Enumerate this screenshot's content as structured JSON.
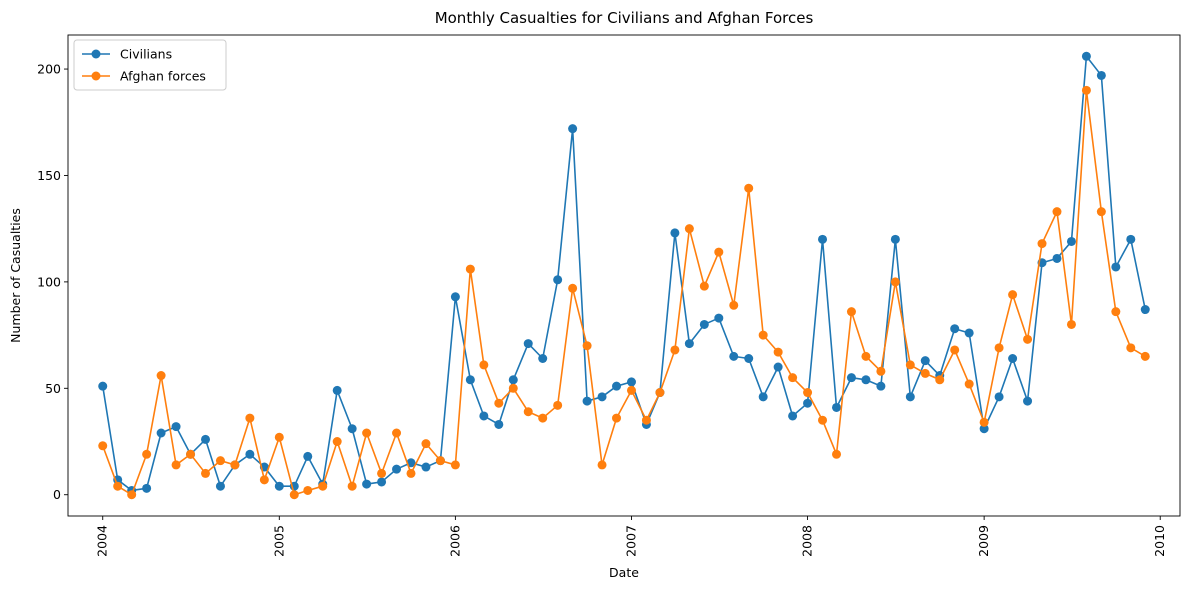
{
  "chart_data": {
    "type": "line",
    "title": "Monthly Casualties for Civilians and Afghan Forces",
    "xlabel": "Date",
    "ylabel": "Number of Casualties",
    "x_tick_labels": [
      "2004",
      "2005",
      "2006",
      "2007",
      "2008",
      "2009",
      "2010"
    ],
    "y_ticks": [
      0,
      50,
      100,
      150,
      200
    ],
    "ylim": [
      -10,
      216
    ],
    "xlim": [
      "2003-10-21",
      "2010-02-11"
    ],
    "grid": false,
    "legend_position": "top-left",
    "x": [
      "2004-01",
      "2004-02",
      "2004-03",
      "2004-04",
      "2004-05",
      "2004-06",
      "2004-07",
      "2004-08",
      "2004-09",
      "2004-10",
      "2004-11",
      "2004-12",
      "2005-01",
      "2005-02",
      "2005-03",
      "2005-04",
      "2005-05",
      "2005-06",
      "2005-07",
      "2005-08",
      "2005-09",
      "2005-10",
      "2005-11",
      "2005-12",
      "2006-01",
      "2006-02",
      "2006-03",
      "2006-04",
      "2006-05",
      "2006-06",
      "2006-07",
      "2006-08",
      "2006-09",
      "2006-10",
      "2006-11",
      "2006-12",
      "2007-01",
      "2007-02",
      "2007-03",
      "2007-04",
      "2007-05",
      "2007-06",
      "2007-07",
      "2007-08",
      "2007-09",
      "2007-10",
      "2007-11",
      "2007-12",
      "2008-01",
      "2008-02",
      "2008-03",
      "2008-04",
      "2008-05",
      "2008-06",
      "2008-07",
      "2008-08",
      "2008-09",
      "2008-10",
      "2008-11",
      "2008-12",
      "2009-01",
      "2009-02",
      "2009-03",
      "2009-04",
      "2009-05",
      "2009-06",
      "2009-07",
      "2009-08",
      "2009-09",
      "2009-10",
      "2009-11",
      "2009-12"
    ],
    "series": [
      {
        "name": "Civilians",
        "color": "#1f77b4",
        "values": [
          51,
          7,
          2,
          3,
          29,
          32,
          19,
          26,
          4,
          14,
          19,
          13,
          4,
          4,
          18,
          5,
          49,
          31,
          5,
          6,
          12,
          15,
          13,
          16,
          93,
          54,
          37,
          33,
          54,
          71,
          64,
          101,
          172,
          44,
          46,
          51,
          53,
          33,
          48,
          123,
          71,
          80,
          83,
          65,
          64,
          46,
          60,
          37,
          43,
          120,
          41,
          55,
          54,
          51,
          120,
          46,
          63,
          56,
          78,
          76,
          31,
          46,
          64,
          44,
          109,
          111,
          119,
          206,
          197,
          107,
          120,
          87
        ]
      },
      {
        "name": "Afghan forces",
        "color": "#ff7f0e",
        "values": [
          23,
          4,
          0,
          19,
          56,
          14,
          19,
          10,
          16,
          14,
          36,
          7,
          27,
          0,
          2,
          4,
          25,
          4,
          29,
          10,
          29,
          10,
          24,
          16,
          14,
          106,
          61,
          43,
          50,
          39,
          36,
          42,
          97,
          70,
          14,
          36,
          49,
          35,
          48,
          68,
          125,
          98,
          114,
          89,
          144,
          75,
          67,
          55,
          48,
          35,
          19,
          86,
          65,
          58,
          100,
          61,
          57,
          54,
          68,
          52,
          34,
          69,
          94,
          73,
          118,
          133,
          80,
          190,
          133,
          86,
          69,
          65
        ]
      }
    ]
  }
}
